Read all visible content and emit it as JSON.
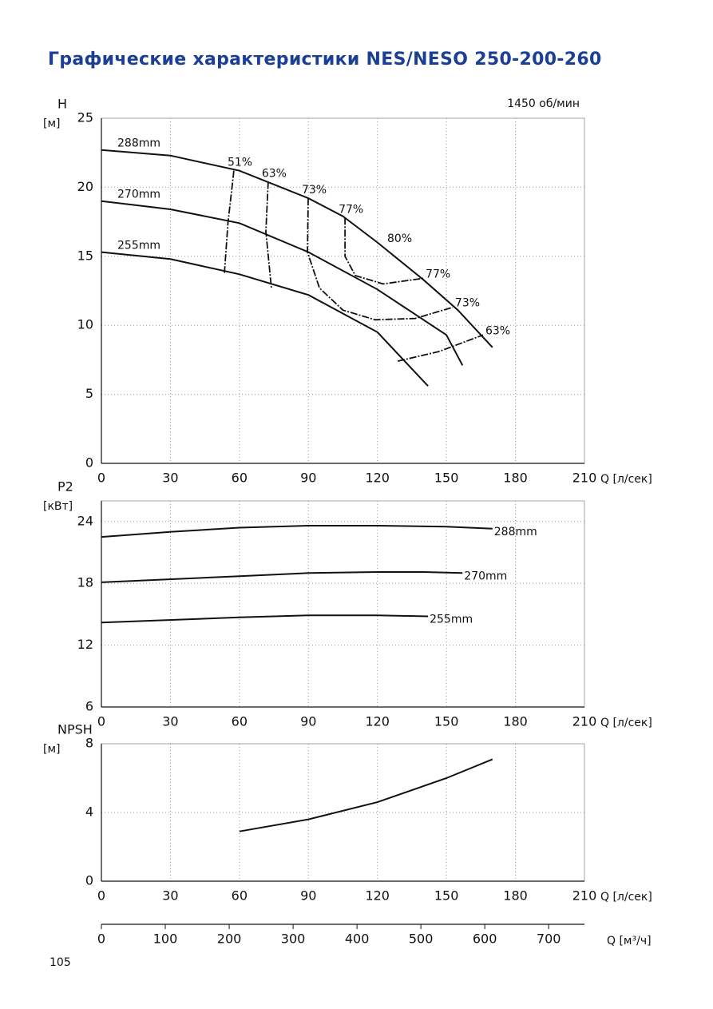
{
  "title": "Графические характеристики NES/NESO 250-200-260",
  "page_number": "105",
  "chart_data": [
    {
      "type": "line",
      "ylabel": "H",
      "yunit": "[м]",
      "xlabel": "Q [л/сек]",
      "speed": "1450 об/мин",
      "annotation": "80%",
      "xlim": [
        0,
        210
      ],
      "xticks": [
        0,
        30,
        60,
        90,
        120,
        150,
        180,
        210
      ],
      "ylim": [
        0,
        25
      ],
      "yticks": [
        0,
        5,
        10,
        15,
        20,
        25
      ],
      "grid": true,
      "color": "#111111",
      "series_label_at": "start",
      "series": [
        {
          "name": "288mm",
          "x": [
            0,
            30,
            60,
            90,
            105,
            120,
            140,
            155,
            170
          ],
          "values": [
            22.7,
            22.3,
            21.2,
            19.2,
            17.9,
            16.0,
            13.3,
            11.1,
            8.4
          ]
        },
        {
          "name": "270mm",
          "x": [
            0,
            30,
            60,
            90,
            120,
            150,
            157
          ],
          "values": [
            19.0,
            18.4,
            17.4,
            15.3,
            12.6,
            9.3,
            7.1
          ]
        },
        {
          "name": "255mm",
          "x": [
            0,
            30,
            60,
            90,
            120,
            142
          ],
          "values": [
            15.3,
            14.8,
            13.7,
            12.2,
            9.5,
            5.6
          ]
        }
      ],
      "efficiency_curves": [
        {
          "name": "51%",
          "label_at": "start",
          "x": [
            57.6,
            55,
            53.5
          ],
          "values": [
            21.2,
            17.4,
            13.8
          ]
        },
        {
          "name": "63%",
          "label_at": "start",
          "x": [
            72.5,
            71.5,
            73.9
          ],
          "values": [
            20.4,
            16.8,
            12.7
          ]
        },
        {
          "name": "73%",
          "label_at": "both",
          "x": [
            89.9,
            89.6,
            94.8,
            105,
            119,
            136.4,
            152.7
          ],
          "values": [
            19.2,
            15.3,
            12.7,
            11.1,
            10.4,
            10.5,
            11.3
          ]
        },
        {
          "name": "77%",
          "label_at": "both",
          "x": [
            105.9,
            105.9,
            110.4,
            122.5,
            139.9
          ],
          "values": [
            17.8,
            15.0,
            13.6,
            13.0,
            13.4
          ]
        },
        {
          "name": "63%",
          "label_at": "end",
          "x": [
            128.8,
            146.8,
            165.9
          ],
          "values": [
            7.4,
            8.1,
            9.3
          ]
        }
      ]
    },
    {
      "type": "line",
      "ylabel": "P2",
      "yunit": "[кВт]",
      "xlabel": "Q [л/сек]",
      "xlim": [
        0,
        210
      ],
      "xticks": [
        0,
        30,
        60,
        90,
        120,
        150,
        180,
        210
      ],
      "ylim": [
        6,
        26
      ],
      "yticks": [
        6,
        12,
        18,
        24
      ],
      "grid": true,
      "color": "#111111",
      "series_label_at": "end",
      "series": [
        {
          "name": "288mm",
          "x": [
            0,
            30,
            60,
            90,
            120,
            150,
            170
          ],
          "values": [
            22.5,
            23.0,
            23.4,
            23.6,
            23.6,
            23.5,
            23.3
          ]
        },
        {
          "name": "270mm",
          "x": [
            0,
            60,
            90,
            120,
            140,
            157
          ],
          "values": [
            18.1,
            18.7,
            19.0,
            19.1,
            19.1,
            19.0
          ]
        },
        {
          "name": "255mm",
          "x": [
            0,
            60,
            90,
            120,
            142
          ],
          "values": [
            14.2,
            14.7,
            14.9,
            14.9,
            14.8
          ]
        }
      ]
    },
    {
      "type": "line",
      "ylabel": "NPSH",
      "yunit": "[м]",
      "xlabel": "Q [л/сек]",
      "xlim": [
        0,
        210
      ],
      "xticks": [
        0,
        30,
        60,
        90,
        120,
        150,
        180,
        210
      ],
      "ylim": [
        0,
        8
      ],
      "yticks": [
        0,
        4,
        8
      ],
      "grid": true,
      "color": "#111111",
      "x2label": "Q [м³/ч]",
      "x2lim": [
        0,
        756
      ],
      "x2ticks": [
        0,
        100,
        200,
        300,
        400,
        500,
        600,
        700
      ],
      "series": [
        {
          "x": [
            60,
            90,
            120,
            150,
            170
          ],
          "values": [
            2.9,
            3.6,
            4.6,
            6.0,
            7.1
          ]
        }
      ]
    }
  ]
}
